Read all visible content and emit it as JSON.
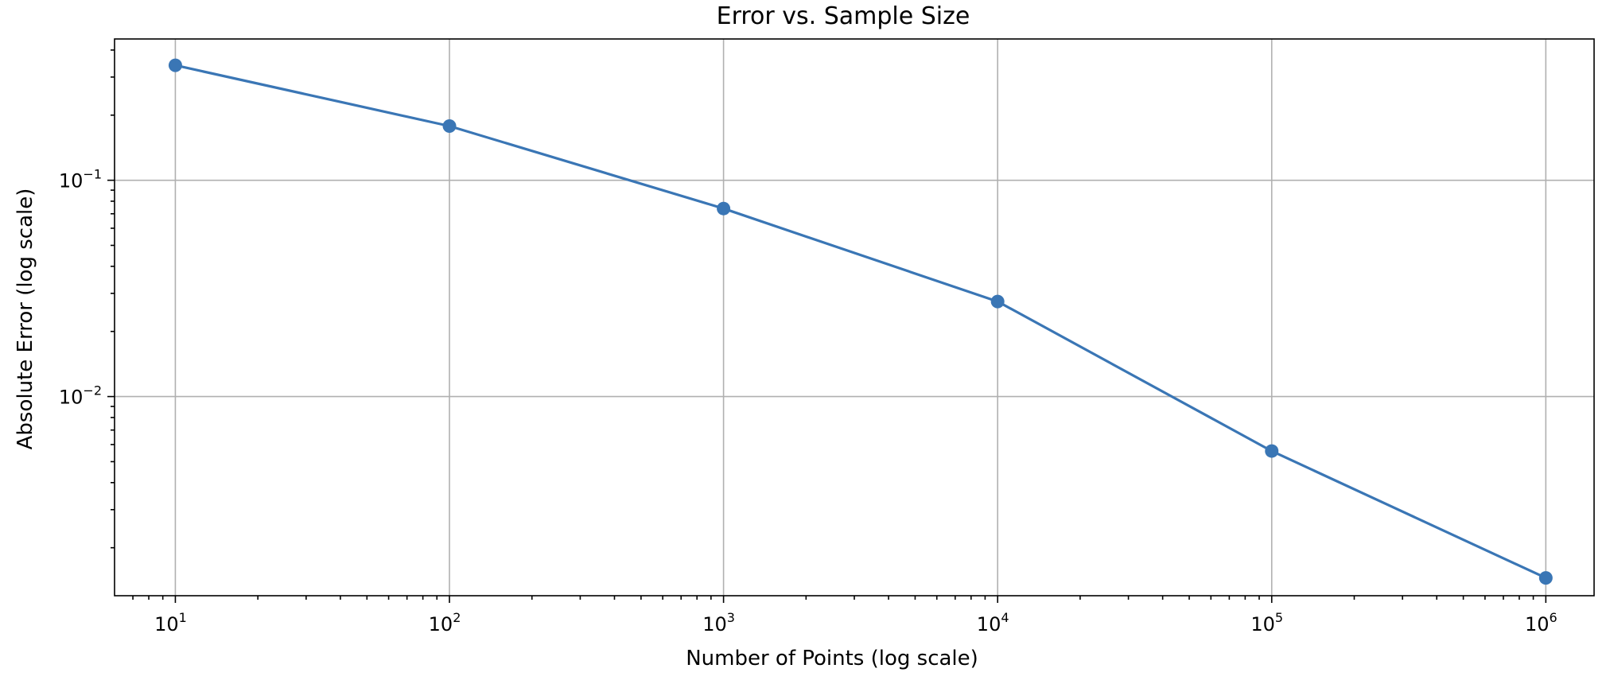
{
  "chart_data": {
    "type": "line",
    "title": "Error vs. Sample Size",
    "xlabel": "Number of Points (log scale)",
    "ylabel": "Absolute Error (log scale)",
    "xscale": "log",
    "yscale": "log",
    "grid": true,
    "xlim": [
      6,
      1500000
    ],
    "ylim": [
      0.0012,
      0.45
    ],
    "x_ticks": [
      {
        "value": 10,
        "base": "10",
        "exp": "1"
      },
      {
        "value": 100,
        "base": "10",
        "exp": "2"
      },
      {
        "value": 1000,
        "base": "10",
        "exp": "3"
      },
      {
        "value": 10000,
        "base": "10",
        "exp": "4"
      },
      {
        "value": 100000,
        "base": "10",
        "exp": "5"
      },
      {
        "value": 1000000,
        "base": "10",
        "exp": "6"
      }
    ],
    "y_ticks": [
      {
        "value": 0.1,
        "base": "10",
        "exp": "−1"
      },
      {
        "value": 0.01,
        "base": "10",
        "exp": "−2"
      }
    ],
    "series": [
      {
        "color": "#3a76b5",
        "marker": "circle",
        "x": [
          10,
          100,
          1000,
          10000,
          100000,
          1000000
        ],
        "y": [
          0.34,
          0.178,
          0.074,
          0.0275,
          0.0056,
          0.00145
        ]
      }
    ]
  }
}
